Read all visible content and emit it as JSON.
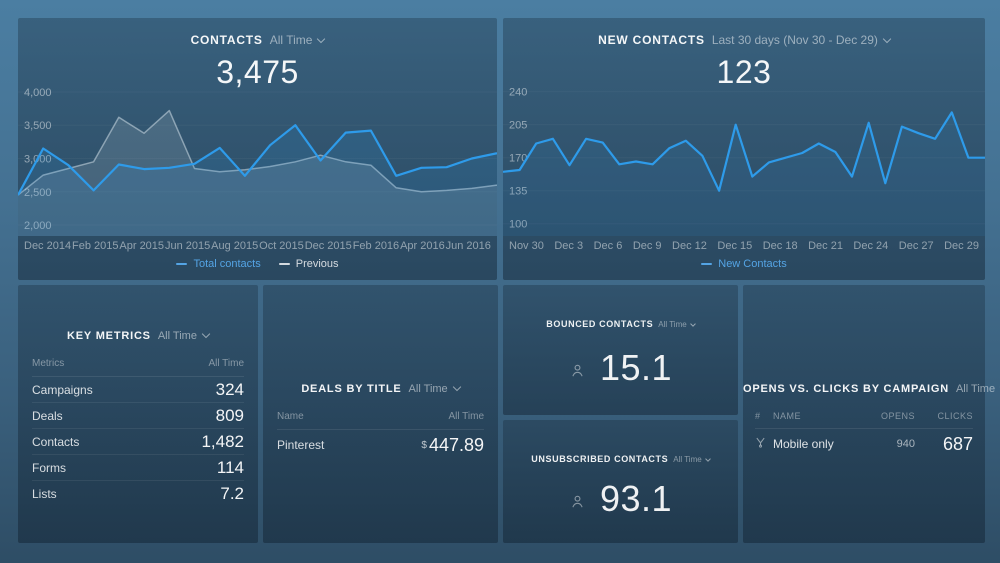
{
  "colors": {
    "accent_blue": "#2E9BEA",
    "previous_gray": "#CDDCE6",
    "background_top": "#4B7EA2",
    "background_bottom": "#2E4D65"
  },
  "panels": {
    "contacts": {
      "title": "CONTACTS",
      "range": "All Time",
      "value": "3,475"
    },
    "new_contacts": {
      "title": "NEW CONTACTS",
      "range": "Last 30 days (Nov 30 - Dec 29)",
      "value": "123"
    },
    "key_metrics": {
      "title": "KEY METRICS",
      "range": "All Time",
      "columns": [
        "Metrics",
        "All Time"
      ],
      "rows": [
        {
          "label": "Campaigns",
          "value": "324"
        },
        {
          "label": "Deals",
          "value": "809"
        },
        {
          "label": "Contacts",
          "value": "1,482"
        },
        {
          "label": "Forms",
          "value": "114"
        },
        {
          "label": "Lists",
          "value": "7.2"
        }
      ]
    },
    "deals_by_title": {
      "title": "DEALS BY TITLE",
      "range": "All Time",
      "columns": [
        "Name",
        "All Time"
      ],
      "rows": [
        {
          "label": "Pinterest",
          "currency": "$",
          "value": "447.89"
        }
      ]
    },
    "bounced": {
      "title": "BOUNCED CONTACTS",
      "range": "All Time",
      "value": "15.1",
      "icon": "person-icon"
    },
    "unsubscribed": {
      "title": "UNSUBSCRIBED CONTACTS",
      "range": "All Time",
      "value": "93.1",
      "icon": "person-icon"
    },
    "opens_clicks": {
      "title": "OPENS VS. CLICKS BY CAMPAIGN",
      "range": "All Time",
      "columns": [
        "#",
        "NAME",
        "OPENS",
        "CLICKS"
      ],
      "rows": [
        {
          "rank_icon": "medal-icon",
          "name": "Mobile only",
          "opens": "940",
          "clicks": "687"
        }
      ]
    }
  },
  "chart_data": [
    {
      "type": "line",
      "title": "Contacts over time",
      "x": [
        "Dec 2014",
        "Jan 2015",
        "Feb 2015",
        "Mar 2015",
        "Apr 2015",
        "May 2015",
        "Jun 2015",
        "Jul 2015",
        "Aug 2015",
        "Sep 2015",
        "Oct 2015",
        "Nov 2015",
        "Dec 2015",
        "Jan 2016",
        "Feb 2016",
        "Mar 2016",
        "Apr 2016",
        "May 2016",
        "Jun 2016",
        "Jul 2016"
      ],
      "x_tick_labels": [
        "Dec 2014",
        "Feb 2015",
        "Apr 2015",
        "Jun 2015",
        "Aug 2015",
        "Oct 2015",
        "Dec 2015",
        "Feb 2016",
        "Apr 2016",
        "Jun 2016"
      ],
      "ylim": [
        2000,
        4000
      ],
      "yticks": [
        {
          "label": "4,000",
          "value": 4000
        },
        {
          "label": "3,500",
          "value": 3500
        },
        {
          "label": "3,000",
          "value": 3000
        },
        {
          "label": "2,500",
          "value": 2500
        },
        {
          "label": "2,000",
          "value": 2000
        }
      ],
      "render": {
        "vmax": 4090,
        "vmin": 1835
      },
      "grid": false,
      "legend_position": "bottom",
      "series": [
        {
          "name": "Total contacts",
          "color": "#2E9BEA",
          "width": 2.2,
          "fill": "rgba(46,155,234,0.14)",
          "legend_color": "#54A4E4",
          "values": [
            2450,
            3150,
            2900,
            2520,
            2910,
            2840,
            2860,
            2920,
            3160,
            2740,
            3200,
            3500,
            2970,
            3390,
            3420,
            2740,
            2860,
            2870,
            3000,
            3080
          ]
        },
        {
          "name": "Previous",
          "color": "rgba(205,220,230,0.55)",
          "width": 1.5,
          "fill": "rgba(205,220,230,0.15)",
          "legend_color": "rgba(255,255,255,0.8)",
          "values": [
            2450,
            2750,
            2850,
            2950,
            3620,
            3380,
            3720,
            2850,
            2800,
            2830,
            2880,
            2950,
            3050,
            2950,
            2900,
            2560,
            2500,
            2520,
            2550,
            2600
          ]
        }
      ]
    },
    {
      "type": "line",
      "title": "New contacts, last 30 days",
      "x": [
        "Nov 30",
        "Dec 1",
        "Dec 2",
        "Dec 3",
        "Dec 4",
        "Dec 5",
        "Dec 6",
        "Dec 7",
        "Dec 8",
        "Dec 9",
        "Dec 10",
        "Dec 11",
        "Dec 12",
        "Dec 13",
        "Dec 14",
        "Dec 15",
        "Dec 16",
        "Dec 17",
        "Dec 18",
        "Dec 19",
        "Dec 20",
        "Dec 21",
        "Dec 22",
        "Dec 23",
        "Dec 24",
        "Dec 25",
        "Dec 26",
        "Dec 27",
        "Dec 28",
        "Dec 29"
      ],
      "x_tick_labels": [
        "Nov 30",
        "Dec 3",
        "Dec 6",
        "Dec 9",
        "Dec 12",
        "Dec 15",
        "Dec 18",
        "Dec 21",
        "Dec 24",
        "Dec 27",
        "Dec 29"
      ],
      "ylim": [
        100,
        240
      ],
      "yticks": [
        {
          "label": "240",
          "value": 240
        },
        {
          "label": "205",
          "value": 205
        },
        {
          "label": "170",
          "value": 170
        },
        {
          "label": "135",
          "value": 135
        },
        {
          "label": "100",
          "value": 100
        }
      ],
      "render": {
        "vmax": 246,
        "vmin": 87
      },
      "grid": false,
      "legend_position": "bottom",
      "series": [
        {
          "name": "New Contacts",
          "color": "#2E9BEA",
          "width": 2.2,
          "fill": "rgba(46,155,234,0.10)",
          "legend_color": "#54A4E4",
          "values": [
            155,
            157,
            185,
            190,
            162,
            190,
            186,
            163,
            166,
            163,
            180,
            188,
            172,
            135,
            205,
            150,
            165,
            170,
            175,
            185,
            176,
            150,
            207,
            143,
            203,
            196,
            190,
            218,
            170,
            170
          ]
        }
      ]
    }
  ]
}
